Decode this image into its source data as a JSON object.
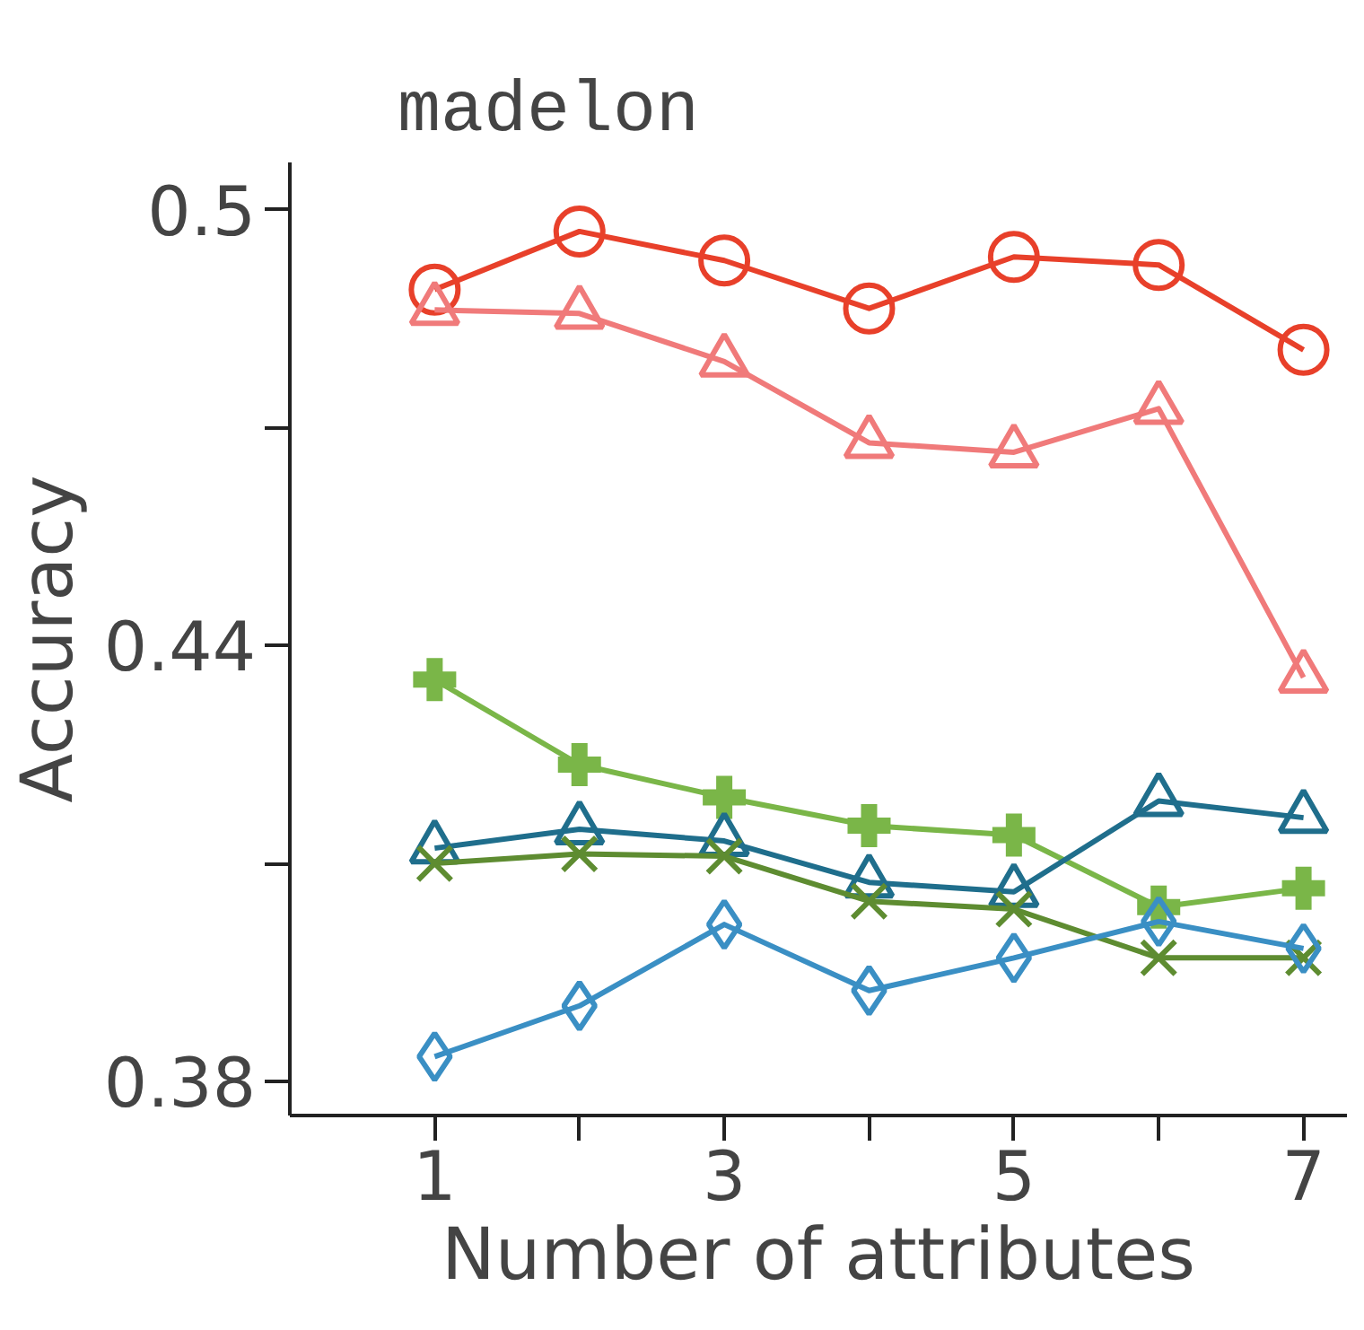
{
  "chart_data": {
    "type": "line",
    "title": "madelon",
    "xlabel": "Number of attributes",
    "ylabel": "Accuracy",
    "x": [
      1,
      2,
      3,
      4,
      5,
      6,
      7
    ],
    "series": [
      {
        "color": "#e8402a",
        "marker": "circle",
        "values": [
          0.489,
          0.497,
          0.493,
          0.4864,
          0.4935,
          0.4924,
          0.4807
        ]
      },
      {
        "color": "#f07a7a",
        "marker": "triangle",
        "values": [
          0.4862,
          0.4857,
          0.4791,
          0.4679,
          0.4666,
          0.4726,
          0.4356
        ]
      },
      {
        "color": "#7ab648",
        "marker": "cross",
        "values": [
          0.4353,
          0.4236,
          0.4191,
          0.4152,
          0.4139,
          0.404,
          0.4066
        ]
      },
      {
        "color": "#1f6e8c",
        "marker": "triangle",
        "values": [
          0.4121,
          0.4147,
          0.4131,
          0.4074,
          0.4061,
          0.4186,
          0.4163
        ]
      },
      {
        "color": "#5e8c31",
        "marker": "x",
        "values": [
          0.41,
          0.4113,
          0.411,
          0.4048,
          0.4037,
          0.397,
          0.397
        ]
      },
      {
        "color": "#3a8fc4",
        "marker": "diamond",
        "values": [
          0.3834,
          0.3904,
          0.4016,
          0.3925,
          0.397,
          0.402,
          0.3983
        ]
      }
    ],
    "xlim": [
      0,
      7.3
    ],
    "ylim": [
      0.3753,
      0.5065
    ],
    "xticks": [
      1,
      {
        "value": 2,
        "label": null
      },
      3,
      {
        "value": 4,
        "label": null
      },
      5,
      {
        "value": 6,
        "label": null
      },
      7
    ],
    "yticks": [
      0.38,
      {
        "value": 0.41,
        "label": null
      },
      0.44,
      {
        "value": 0.47,
        "label": null
      },
      0.5
    ],
    "grid": false,
    "line_style": "solid"
  }
}
